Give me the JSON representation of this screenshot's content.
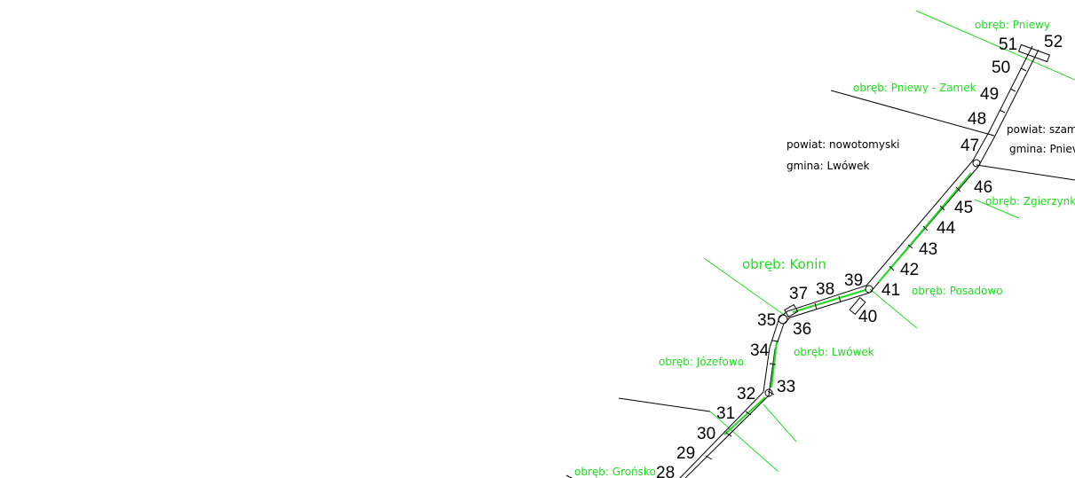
{
  "colors": {
    "background": "#ffffff",
    "ink": "#000000",
    "obreb_green": "#1fdc1f"
  },
  "obreb_labels": {
    "pniewy": "obręb: Pniewy",
    "pniewy_zamek": "obręb: Pniewy - Zamek",
    "zgierzynka": "obręb: Zgierzynka",
    "konin": "obręb: Konin",
    "posadowo": "obręb: Posadowo",
    "jozefowo": "obręb: Józefowo",
    "lwowek": "obręb: Lwówek",
    "gronsko": "obręb: Grońsko"
  },
  "admin_labels": {
    "left_powiat": "powiat: nowotomyski",
    "left_gmina": "gmina: Lwówek",
    "right_powiat": "powiat: szam",
    "right_gmina": "gmina: Pniev"
  },
  "stations": [
    "28",
    "29",
    "30",
    "31",
    "32",
    "33",
    "34",
    "35",
    "36",
    "37",
    "38",
    "39",
    "40",
    "41",
    "42",
    "43",
    "44",
    "45",
    "46",
    "47",
    "48",
    "49",
    "50",
    "51",
    "52"
  ]
}
